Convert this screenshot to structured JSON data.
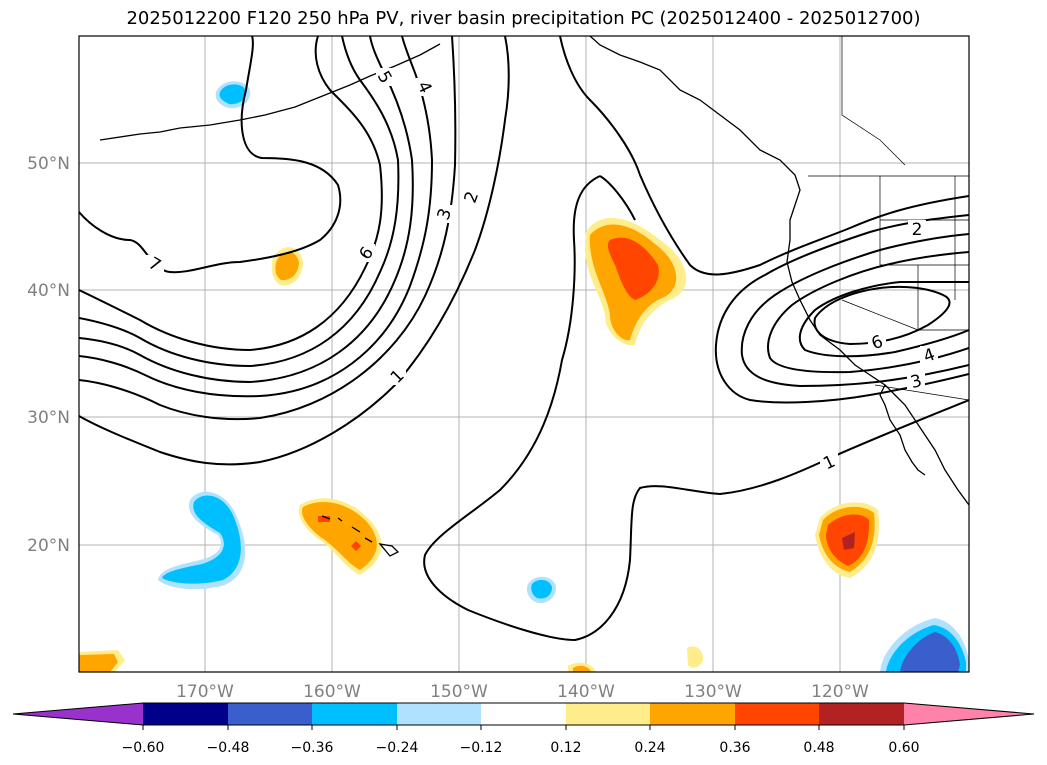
{
  "title": "2025012200 F120 250 hPa PV, river basin precipitation PC (2025012400 - 2025012700)",
  "map": {
    "projection": "Mercator",
    "lon_range": [
      -180,
      -110
    ],
    "lat_range": [
      10,
      60
    ],
    "gridlines": true,
    "lon_ticks": [
      {
        "value": -170,
        "label": "170°W"
      },
      {
        "value": -160,
        "label": "160°W"
      },
      {
        "value": -150,
        "label": "150°W"
      },
      {
        "value": -140,
        "label": "140°W"
      },
      {
        "value": -130,
        "label": "130°W"
      },
      {
        "value": -120,
        "label": "120°W"
      }
    ],
    "lat_ticks": [
      {
        "value": 20,
        "label": "20°N"
      },
      {
        "value": 30,
        "label": "30°N"
      },
      {
        "value": 40,
        "label": "40°N"
      },
      {
        "value": 50,
        "label": "50°N"
      }
    ],
    "pv_contour_labels": [
      "7",
      "6",
      "5",
      "4",
      "3",
      "2",
      "1",
      "2",
      "6",
      "4",
      "3",
      "1"
    ],
    "shading_variable": "river basin precipitation PC",
    "contour_variable": "250 hPa PV"
  },
  "colorbar": {
    "ticks": [
      "−0.60",
      "−0.48",
      "−0.36",
      "−0.24",
      "−0.12",
      "0.12",
      "0.24",
      "0.36",
      "0.48",
      "0.60"
    ],
    "colors": [
      "#9932cc",
      "#00008b",
      "#3a5fcd",
      "#00bfff",
      "#b0e2ff",
      "#ffffff",
      "#ffec8b",
      "#ffa500",
      "#ff4500",
      "#b22222",
      "#ff82ab"
    ],
    "extend": "both"
  }
}
